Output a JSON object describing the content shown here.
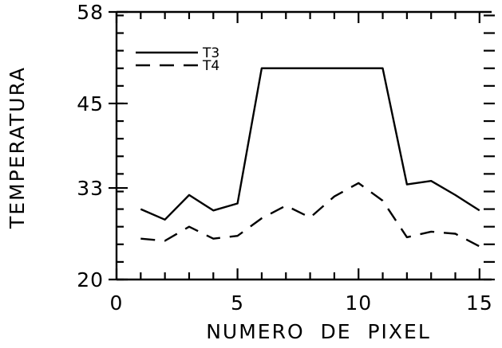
{
  "chart_data": {
    "type": "line",
    "title": "",
    "xlabel": "NUMERO  DE  PIXEL",
    "ylabel": "TEMPERATURA",
    "xlim": [
      0,
      15.5
    ],
    "ylim": [
      20,
      58
    ],
    "x_ticks": [
      0,
      5,
      10,
      15
    ],
    "x_tick_labels": [
      "0",
      "5",
      "10",
      "15"
    ],
    "y_ticks": [
      20,
      33,
      45,
      58
    ],
    "y_tick_labels": [
      "20",
      "33",
      "45",
      "58"
    ],
    "x_minor_step": 1,
    "y_minor_step": 2.5,
    "grid": false,
    "legend_position": "top-left",
    "x": [
      1,
      2,
      3,
      4,
      5,
      6,
      7,
      8,
      9,
      10,
      11,
      12,
      13,
      14,
      15
    ],
    "series": [
      {
        "name": "T3",
        "style": "solid",
        "values": [
          30.0,
          28.5,
          32.0,
          29.8,
          30.8,
          50.0,
          50.0,
          50.0,
          50.0,
          50.0,
          50.0,
          33.5,
          34.0,
          32.0,
          29.8
        ]
      },
      {
        "name": "T4",
        "style": "dashed",
        "values": [
          25.8,
          25.5,
          27.5,
          25.8,
          26.2,
          28.7,
          30.5,
          28.8,
          31.8,
          33.7,
          31.2,
          26.0,
          26.8,
          26.5,
          24.7
        ]
      }
    ],
    "color": "#000000"
  }
}
